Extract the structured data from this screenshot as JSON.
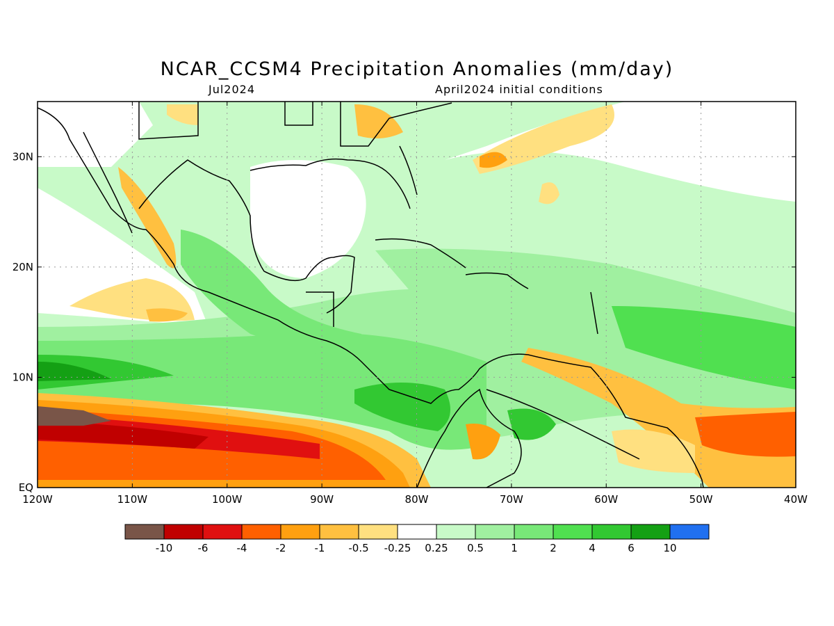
{
  "title": "NCAR_CCSM4 Precipitation Anomalies (mm/day)",
  "subtitle_left": "Jul2024",
  "subtitle_right": "April2024 initial conditions",
  "map": {
    "lon_ticks": [
      "120W",
      "110W",
      "100W",
      "90W",
      "80W",
      "70W",
      "60W",
      "50W",
      "40W"
    ],
    "lat_ticks": [
      "EQ",
      "10N",
      "20N",
      "30N"
    ],
    "lon_range": [
      -120,
      -40
    ],
    "lat_range": [
      0,
      35
    ],
    "grid": "dotted"
  },
  "colorbar": {
    "labels": [
      "-10",
      "-6",
      "-4",
      "-2",
      "-1",
      "-0.5",
      "-0.25",
      "0.25",
      "0.5",
      "1",
      "2",
      "4",
      "6",
      "10"
    ],
    "colors": [
      "#795548",
      "#c00000",
      "#e01010",
      "#ff6000",
      "#ffa010",
      "#ffc040",
      "#ffe080",
      "#ffffff",
      "#c8fac8",
      "#a0f0a0",
      "#78e878",
      "#50e050",
      "#32c832",
      "#14a014",
      "#2070f0"
    ]
  }
}
